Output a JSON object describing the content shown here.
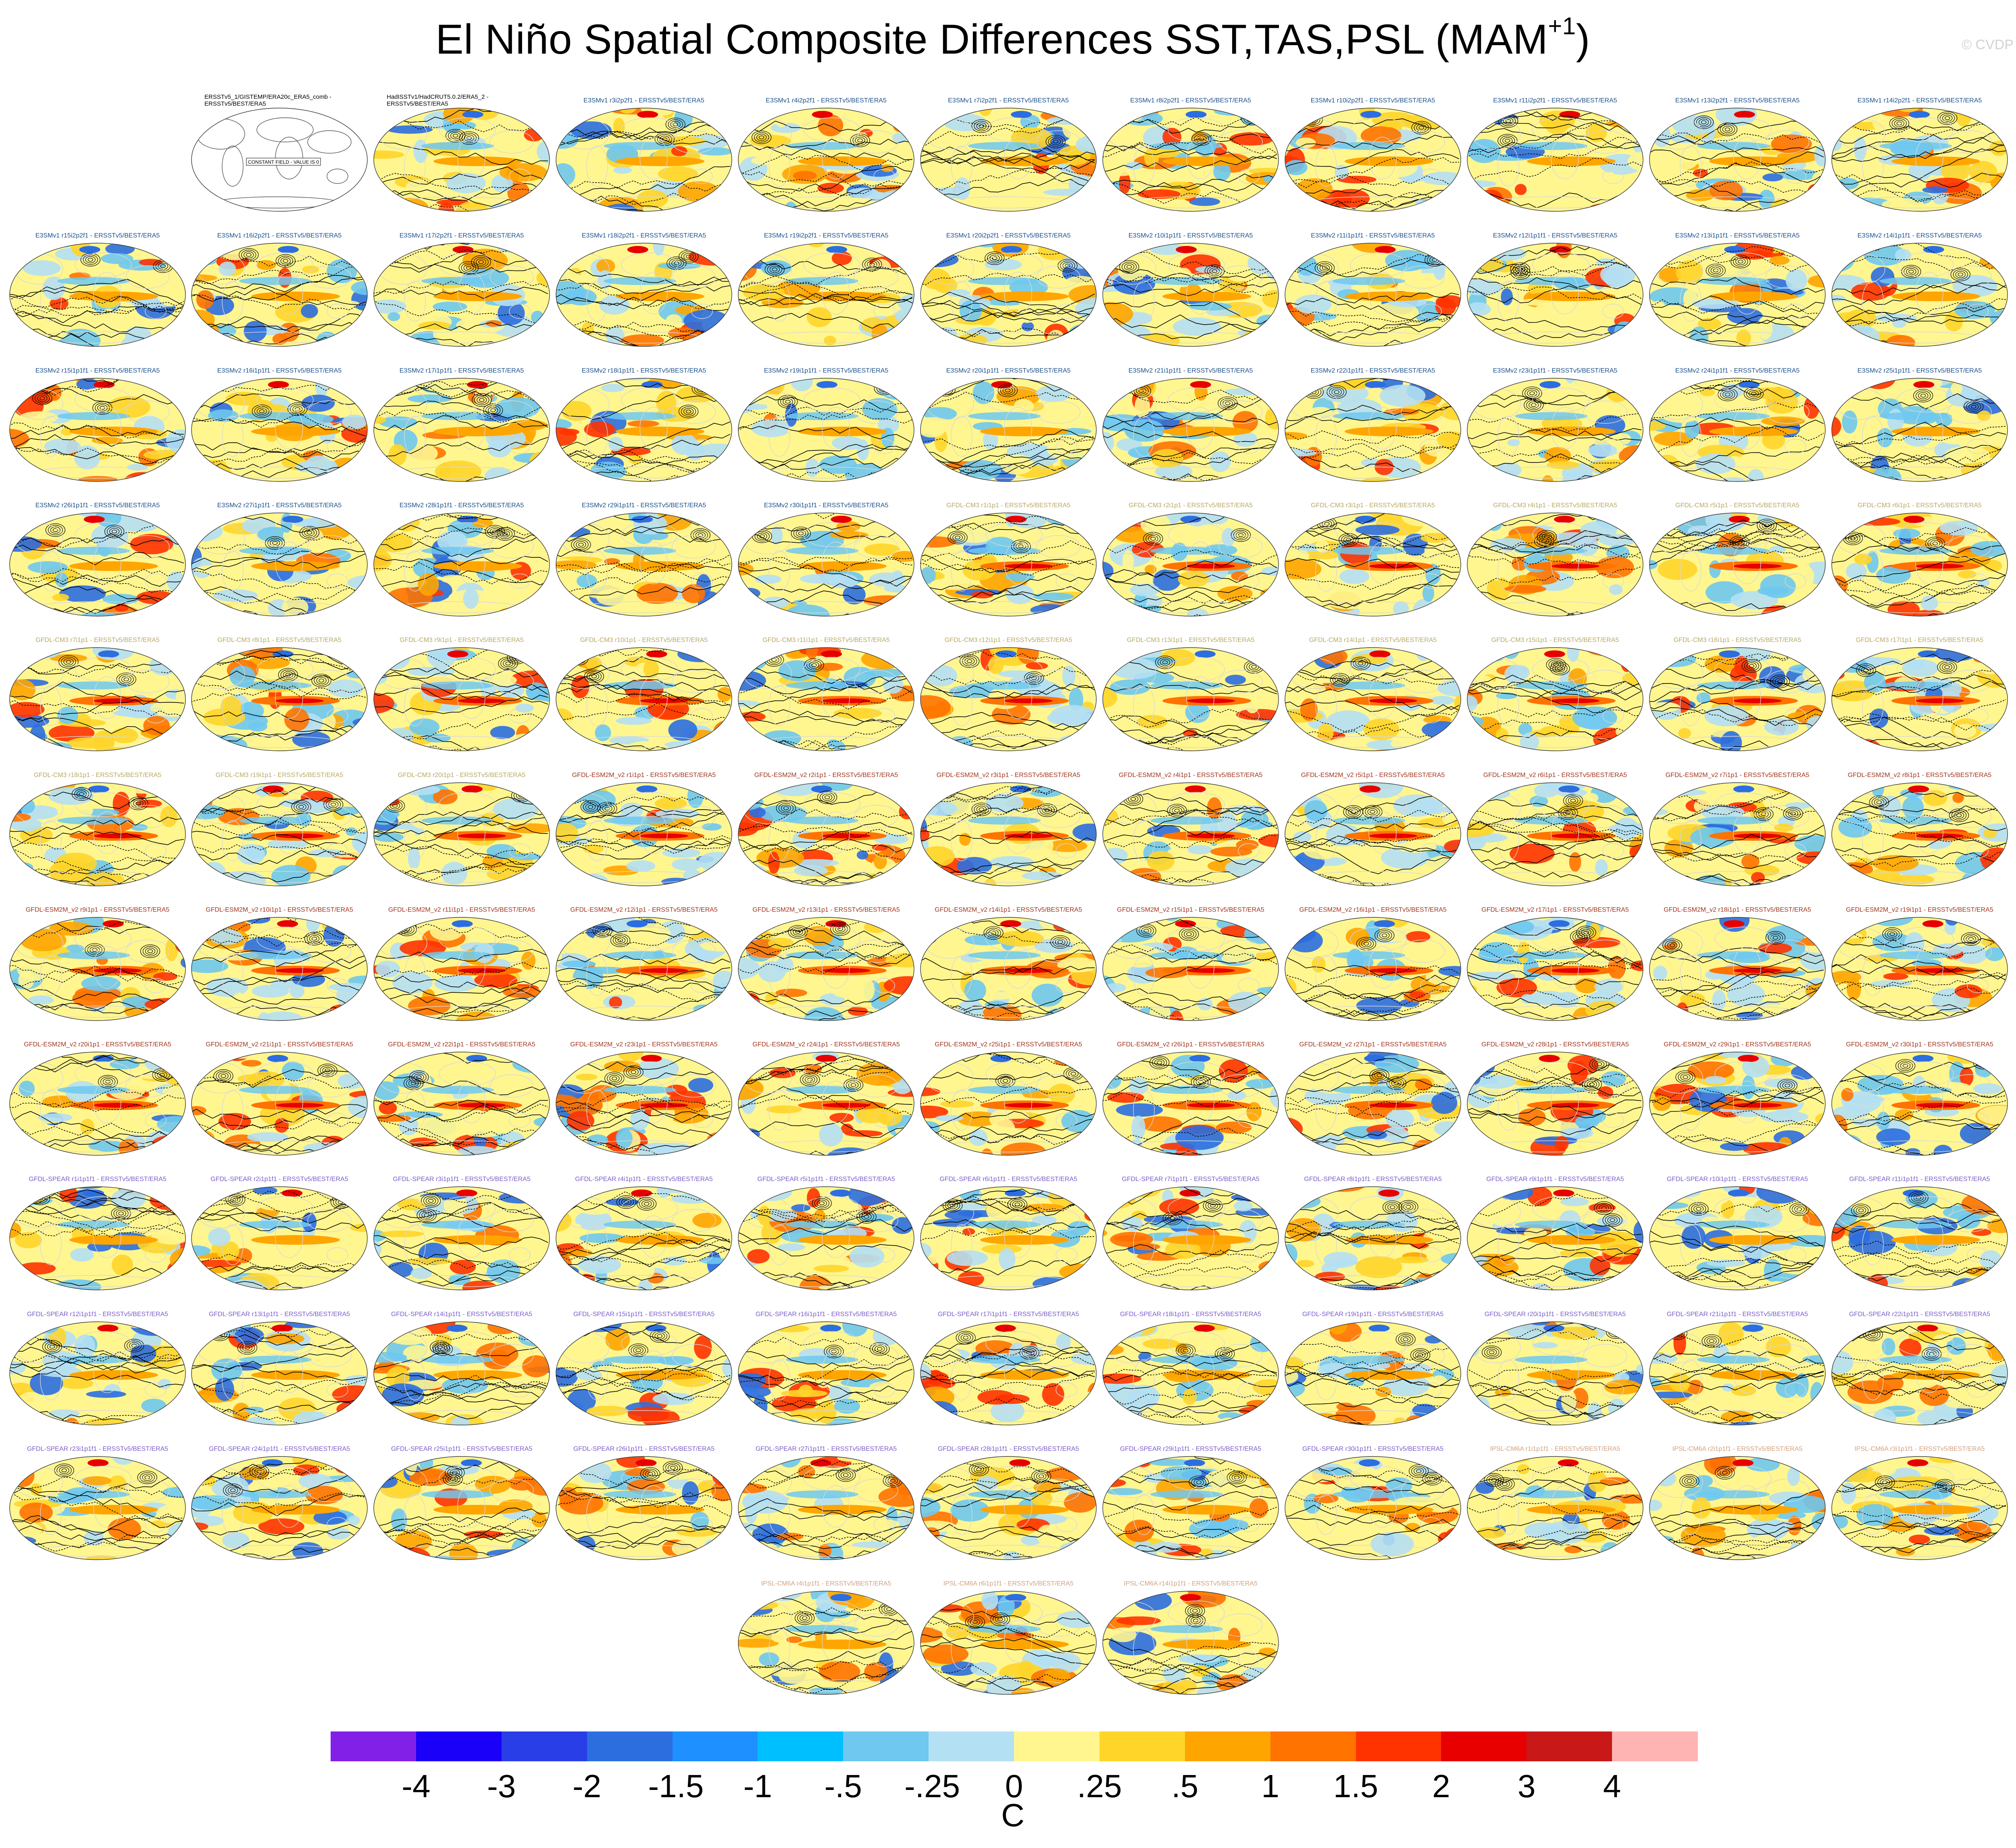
{
  "title": "El Niño Spatial Composite Differences SST,TAS,PSL (MAM",
  "title_superscript": "+1",
  "title_suffix": ")",
  "copyright": "© CVDP",
  "colors": {
    "E3SM": "#1a4f8a",
    "GFDL-CM3": "#b8a860",
    "GFDL-ESM2M": "#a0341c",
    "GFDL-SPEAR": "#7a5cc8",
    "IPSL-CM6A": "#d0a080",
    "obs": "#000000"
  },
  "panels": [
    {
      "label": "ERSSTv5_1/GISTEMP/ERA20c_ERA5_comb - ERSSTv5/BEST/ERA5",
      "group": "obs",
      "note": "CONSTANT FIELD - VALUE IS 0"
    },
    {
      "label": "HadISSTv1/HadCRUT5.0.2/ERA5_2 - ERSSTv5/BEST/ERA5",
      "group": "obs"
    },
    {
      "label": "E3SMv1 r3i2p2f1 - ERSSTv5/BEST/ERA5",
      "group": "E3SM"
    },
    {
      "label": "E3SMv1 r4i2p2f1 - ERSSTv5/BEST/ERA5",
      "group": "E3SM"
    },
    {
      "label": "E3SMv1 r7i2p2f1 - ERSSTv5/BEST/ERA5",
      "group": "E3SM"
    },
    {
      "label": "E3SMv1 r8i2p2f1 - ERSSTv5/BEST/ERA5",
      "group": "E3SM"
    },
    {
      "label": "E3SMv1 r10i2p2f1 - ERSSTv5/BEST/ERA5",
      "group": "E3SM"
    },
    {
      "label": "E3SMv1 r11i2p2f1 - ERSSTv5/BEST/ERA5",
      "group": "E3SM"
    },
    {
      "label": "E3SMv1 r13i2p2f1 - ERSSTv5/BEST/ERA5",
      "group": "E3SM"
    },
    {
      "label": "E3SMv1 r14i2p2f1 - ERSSTv5/BEST/ERA5",
      "group": "E3SM"
    },
    {
      "label": "E3SMv1 r15i2p2f1 - ERSSTv5/BEST/ERA5",
      "group": "E3SM"
    },
    {
      "label": "E3SMv1 r16i2p2f1 - ERSSTv5/BEST/ERA5",
      "group": "E3SM"
    },
    {
      "label": "E3SMv1 r17i2p2f1 - ERSSTv5/BEST/ERA5",
      "group": "E3SM"
    },
    {
      "label": "E3SMv1 r18i2p2f1 - ERSSTv5/BEST/ERA5",
      "group": "E3SM"
    },
    {
      "label": "E3SMv1 r19i2p2f1 - ERSSTv5/BEST/ERA5",
      "group": "E3SM"
    },
    {
      "label": "E3SMv1 r20i2p2f1 - ERSSTv5/BEST/ERA5",
      "group": "E3SM"
    },
    {
      "label": "E3SMv2 r10i1p1f1 - ERSSTv5/BEST/ERA5",
      "group": "E3SM"
    },
    {
      "label": "E3SMv2 r11i1p1f1 - ERSSTv5/BEST/ERA5",
      "group": "E3SM"
    },
    {
      "label": "E3SMv2 r12i1p1f1 - ERSSTv5/BEST/ERA5",
      "group": "E3SM"
    },
    {
      "label": "E3SMv2 r13i1p1f1 - ERSSTv5/BEST/ERA5",
      "group": "E3SM"
    },
    {
      "label": "E3SMv2 r14i1p1f1 - ERSSTv5/BEST/ERA5",
      "group": "E3SM"
    },
    {
      "label": "E3SMv2 r15i1p1f1 - ERSSTv5/BEST/ERA5",
      "group": "E3SM"
    },
    {
      "label": "E3SMv2 r16i1p1f1 - ERSSTv5/BEST/ERA5",
      "group": "E3SM"
    },
    {
      "label": "E3SMv2 r17i1p1f1 - ERSSTv5/BEST/ERA5",
      "group": "E3SM"
    },
    {
      "label": "E3SMv2 r18i1p1f1 - ERSSTv5/BEST/ERA5",
      "group": "E3SM"
    },
    {
      "label": "E3SMv2 r19i1p1f1 - ERSSTv5/BEST/ERA5",
      "group": "E3SM"
    },
    {
      "label": "E3SMv2 r20i1p1f1 - ERSSTv5/BEST/ERA5",
      "group": "E3SM"
    },
    {
      "label": "E3SMv2 r21i1p1f1 - ERSSTv5/BEST/ERA5",
      "group": "E3SM"
    },
    {
      "label": "E3SMv2 r22i1p1f1 - ERSSTv5/BEST/ERA5",
      "group": "E3SM"
    },
    {
      "label": "E3SMv2 r23i1p1f1 - ERSSTv5/BEST/ERA5",
      "group": "E3SM"
    },
    {
      "label": "E3SMv2 r24i1p1f1 - ERSSTv5/BEST/ERA5",
      "group": "E3SM"
    },
    {
      "label": "E3SMv2 r25i1p1f1 - ERSSTv5/BEST/ERA5",
      "group": "E3SM"
    },
    {
      "label": "E3SMv2 r26i1p1f1 - ERSSTv5/BEST/ERA5",
      "group": "E3SM"
    },
    {
      "label": "E3SMv2 r27i1p1f1 - ERSSTv5/BEST/ERA5",
      "group": "E3SM"
    },
    {
      "label": "E3SMv2 r28i1p1f1 - ERSSTv5/BEST/ERA5",
      "group": "E3SM"
    },
    {
      "label": "E3SMv2 r29i1p1f1 - ERSSTv5/BEST/ERA5",
      "group": "E3SM"
    },
    {
      "label": "E3SMv2 r30i1p1f1 - ERSSTv5/BEST/ERA5",
      "group": "E3SM"
    },
    {
      "label": "GFDL-CM3 r1i1p1 - ERSSTv5/BEST/ERA5",
      "group": "GFDL-CM3"
    },
    {
      "label": "GFDL-CM3 r2i1p1 - ERSSTv5/BEST/ERA5",
      "group": "GFDL-CM3"
    },
    {
      "label": "GFDL-CM3 r3i1p1 - ERSSTv5/BEST/ERA5",
      "group": "GFDL-CM3"
    },
    {
      "label": "GFDL-CM3 r4i1p1 - ERSSTv5/BEST/ERA5",
      "group": "GFDL-CM3"
    },
    {
      "label": "GFDL-CM3 r5i1p1 - ERSSTv5/BEST/ERA5",
      "group": "GFDL-CM3"
    },
    {
      "label": "GFDL-CM3 r6i1p1 - ERSSTv5/BEST/ERA5",
      "group": "GFDL-CM3"
    },
    {
      "label": "GFDL-CM3 r7i1p1 - ERSSTv5/BEST/ERA5",
      "group": "GFDL-CM3"
    },
    {
      "label": "GFDL-CM3 r8i1p1 - ERSSTv5/BEST/ERA5",
      "group": "GFDL-CM3"
    },
    {
      "label": "GFDL-CM3 r9i1p1 - ERSSTv5/BEST/ERA5",
      "group": "GFDL-CM3"
    },
    {
      "label": "GFDL-CM3 r10i1p1 - ERSSTv5/BEST/ERA5",
      "group": "GFDL-CM3"
    },
    {
      "label": "GFDL-CM3 r11i1p1 - ERSSTv5/BEST/ERA5",
      "group": "GFDL-CM3"
    },
    {
      "label": "GFDL-CM3 r12i1p1 - ERSSTv5/BEST/ERA5",
      "group": "GFDL-CM3"
    },
    {
      "label": "GFDL-CM3 r13i1p1 - ERSSTv5/BEST/ERA5",
      "group": "GFDL-CM3"
    },
    {
      "label": "GFDL-CM3 r14i1p1 - ERSSTv5/BEST/ERA5",
      "group": "GFDL-CM3"
    },
    {
      "label": "GFDL-CM3 r15i1p1 - ERSSTv5/BEST/ERA5",
      "group": "GFDL-CM3"
    },
    {
      "label": "GFDL-CM3 r16i1p1 - ERSSTv5/BEST/ERA5",
      "group": "GFDL-CM3"
    },
    {
      "label": "GFDL-CM3 r17i1p1 - ERSSTv5/BEST/ERA5",
      "group": "GFDL-CM3"
    },
    {
      "label": "GFDL-CM3 r18i1p1 - ERSSTv5/BEST/ERA5",
      "group": "GFDL-CM3"
    },
    {
      "label": "GFDL-CM3 r19i1p1 - ERSSTv5/BEST/ERA5",
      "group": "GFDL-CM3"
    },
    {
      "label": "GFDL-CM3 r20i1p1 - ERSSTv5/BEST/ERA5",
      "group": "GFDL-CM3"
    },
    {
      "label": "GFDL-ESM2M_v2 r1i1p1 - ERSSTv5/BEST/ERA5",
      "group": "GFDL-ESM2M"
    },
    {
      "label": "GFDL-ESM2M_v2 r2i1p1 - ERSSTv5/BEST/ERA5",
      "group": "GFDL-ESM2M"
    },
    {
      "label": "GFDL-ESM2M_v2 r3i1p1 - ERSSTv5/BEST/ERA5",
      "group": "GFDL-ESM2M"
    },
    {
      "label": "GFDL-ESM2M_v2 r4i1p1 - ERSSTv5/BEST/ERA5",
      "group": "GFDL-ESM2M"
    },
    {
      "label": "GFDL-ESM2M_v2 r5i1p1 - ERSSTv5/BEST/ERA5",
      "group": "GFDL-ESM2M"
    },
    {
      "label": "GFDL-ESM2M_v2 r6i1p1 - ERSSTv5/BEST/ERA5",
      "group": "GFDL-ESM2M"
    },
    {
      "label": "GFDL-ESM2M_v2 r7i1p1 - ERSSTv5/BEST/ERA5",
      "group": "GFDL-ESM2M"
    },
    {
      "label": "GFDL-ESM2M_v2 r8i1p1 - ERSSTv5/BEST/ERA5",
      "group": "GFDL-ESM2M"
    },
    {
      "label": "GFDL-ESM2M_v2 r9i1p1 - ERSSTv5/BEST/ERA5",
      "group": "GFDL-ESM2M"
    },
    {
      "label": "GFDL-ESM2M_v2 r10i1p1 - ERSSTv5/BEST/ERA5",
      "group": "GFDL-ESM2M"
    },
    {
      "label": "GFDL-ESM2M_v2 r11i1p1 - ERSSTv5/BEST/ERA5",
      "group": "GFDL-ESM2M"
    },
    {
      "label": "GFDL-ESM2M_v2 r12i1p1 - ERSSTv5/BEST/ERA5",
      "group": "GFDL-ESM2M"
    },
    {
      "label": "GFDL-ESM2M_v2 r13i1p1 - ERSSTv5/BEST/ERA5",
      "group": "GFDL-ESM2M"
    },
    {
      "label": "GFDL-ESM2M_v2 r14i1p1 - ERSSTv5/BEST/ERA5",
      "group": "GFDL-ESM2M"
    },
    {
      "label": "GFDL-ESM2M_v2 r15i1p1 - ERSSTv5/BEST/ERA5",
      "group": "GFDL-ESM2M"
    },
    {
      "label": "GFDL-ESM2M_v2 r16i1p1 - ERSSTv5/BEST/ERA5",
      "group": "GFDL-ESM2M"
    },
    {
      "label": "GFDL-ESM2M_v2 r17i1p1 - ERSSTv5/BEST/ERA5",
      "group": "GFDL-ESM2M"
    },
    {
      "label": "GFDL-ESM2M_v2 r18i1p1 - ERSSTv5/BEST/ERA5",
      "group": "GFDL-ESM2M"
    },
    {
      "label": "GFDL-ESM2M_v2 r19i1p1 - ERSSTv5/BEST/ERA5",
      "group": "GFDL-ESM2M"
    },
    {
      "label": "GFDL-ESM2M_v2 r20i1p1 - ERSSTv5/BEST/ERA5",
      "group": "GFDL-ESM2M"
    },
    {
      "label": "GFDL-ESM2M_v2 r21i1p1 - ERSSTv5/BEST/ERA5",
      "group": "GFDL-ESM2M"
    },
    {
      "label": "GFDL-ESM2M_v2 r22i1p1 - ERSSTv5/BEST/ERA5",
      "group": "GFDL-ESM2M"
    },
    {
      "label": "GFDL-ESM2M_v2 r23i1p1 - ERSSTv5/BEST/ERA5",
      "group": "GFDL-ESM2M"
    },
    {
      "label": "GFDL-ESM2M_v2 r24i1p1 - ERSSTv5/BEST/ERA5",
      "group": "GFDL-ESM2M"
    },
    {
      "label": "GFDL-ESM2M_v2 r25i1p1 - ERSSTv5/BEST/ERA5",
      "group": "GFDL-ESM2M"
    },
    {
      "label": "GFDL-ESM2M_v2 r26i1p1 - ERSSTv5/BEST/ERA5",
      "group": "GFDL-ESM2M"
    },
    {
      "label": "GFDL-ESM2M_v2 r27i1p1 - ERSSTv5/BEST/ERA5",
      "group": "GFDL-ESM2M"
    },
    {
      "label": "GFDL-ESM2M_v2 r28i1p1 - ERSSTv5/BEST/ERA5",
      "group": "GFDL-ESM2M"
    },
    {
      "label": "GFDL-ESM2M_v2 r29i1p1 - ERSSTv5/BEST/ERA5",
      "group": "GFDL-ESM2M"
    },
    {
      "label": "GFDL-ESM2M_v2 r30i1p1 - ERSSTv5/BEST/ERA5",
      "group": "GFDL-ESM2M"
    },
    {
      "label": "GFDL-SPEAR r1i1p1f1 - ERSSTv5/BEST/ERA5",
      "group": "GFDL-SPEAR"
    },
    {
      "label": "GFDL-SPEAR r2i1p1f1 - ERSSTv5/BEST/ERA5",
      "group": "GFDL-SPEAR"
    },
    {
      "label": "GFDL-SPEAR r3i1p1f1 - ERSSTv5/BEST/ERA5",
      "group": "GFDL-SPEAR"
    },
    {
      "label": "GFDL-SPEAR r4i1p1f1 - ERSSTv5/BEST/ERA5",
      "group": "GFDL-SPEAR"
    },
    {
      "label": "GFDL-SPEAR r5i1p1f1 - ERSSTv5/BEST/ERA5",
      "group": "GFDL-SPEAR"
    },
    {
      "label": "GFDL-SPEAR r6i1p1f1 - ERSSTv5/BEST/ERA5",
      "group": "GFDL-SPEAR"
    },
    {
      "label": "GFDL-SPEAR r7i1p1f1 - ERSSTv5/BEST/ERA5",
      "group": "GFDL-SPEAR"
    },
    {
      "label": "GFDL-SPEAR r8i1p1f1 - ERSSTv5/BEST/ERA5",
      "group": "GFDL-SPEAR"
    },
    {
      "label": "GFDL-SPEAR r9i1p1f1 - ERSSTv5/BEST/ERA5",
      "group": "GFDL-SPEAR"
    },
    {
      "label": "GFDL-SPEAR r10i1p1f1 - ERSSTv5/BEST/ERA5",
      "group": "GFDL-SPEAR"
    },
    {
      "label": "GFDL-SPEAR r11i1p1f1 - ERSSTv5/BEST/ERA5",
      "group": "GFDL-SPEAR"
    },
    {
      "label": "GFDL-SPEAR r12i1p1f1 - ERSSTv5/BEST/ERA5",
      "group": "GFDL-SPEAR"
    },
    {
      "label": "GFDL-SPEAR r13i1p1f1 - ERSSTv5/BEST/ERA5",
      "group": "GFDL-SPEAR"
    },
    {
      "label": "GFDL-SPEAR r14i1p1f1 - ERSSTv5/BEST/ERA5",
      "group": "GFDL-SPEAR"
    },
    {
      "label": "GFDL-SPEAR r15i1p1f1 - ERSSTv5/BEST/ERA5",
      "group": "GFDL-SPEAR"
    },
    {
      "label": "GFDL-SPEAR r16i1p1f1 - ERSSTv5/BEST/ERA5",
      "group": "GFDL-SPEAR"
    },
    {
      "label": "GFDL-SPEAR r17i1p1f1 - ERSSTv5/BEST/ERA5",
      "group": "GFDL-SPEAR"
    },
    {
      "label": "GFDL-SPEAR r18i1p1f1 - ERSSTv5/BEST/ERA5",
      "group": "GFDL-SPEAR"
    },
    {
      "label": "GFDL-SPEAR r19i1p1f1 - ERSSTv5/BEST/ERA5",
      "group": "GFDL-SPEAR"
    },
    {
      "label": "GFDL-SPEAR r20i1p1f1 - ERSSTv5/BEST/ERA5",
      "group": "GFDL-SPEAR"
    },
    {
      "label": "GFDL-SPEAR r21i1p1f1 - ERSSTv5/BEST/ERA5",
      "group": "GFDL-SPEAR"
    },
    {
      "label": "GFDL-SPEAR r22i1p1f1 - ERSSTv5/BEST/ERA5",
      "group": "GFDL-SPEAR"
    },
    {
      "label": "GFDL-SPEAR r23i1p1f1 - ERSSTv5/BEST/ERA5",
      "group": "GFDL-SPEAR"
    },
    {
      "label": "GFDL-SPEAR r24i1p1f1 - ERSSTv5/BEST/ERA5",
      "group": "GFDL-SPEAR"
    },
    {
      "label": "GFDL-SPEAR r25i1p1f1 - ERSSTv5/BEST/ERA5",
      "group": "GFDL-SPEAR"
    },
    {
      "label": "GFDL-SPEAR r26i1p1f1 - ERSSTv5/BEST/ERA5",
      "group": "GFDL-SPEAR"
    },
    {
      "label": "GFDL-SPEAR r27i1p1f1 - ERSSTv5/BEST/ERA5",
      "group": "GFDL-SPEAR"
    },
    {
      "label": "GFDL-SPEAR r28i1p1f1 - ERSSTv5/BEST/ERA5",
      "group": "GFDL-SPEAR"
    },
    {
      "label": "GFDL-SPEAR r29i1p1f1 - ERSSTv5/BEST/ERA5",
      "group": "GFDL-SPEAR"
    },
    {
      "label": "GFDL-SPEAR r30i1p1f1 - ERSSTv5/BEST/ERA5",
      "group": "GFDL-SPEAR"
    },
    {
      "label": "IPSL-CM6A r1i1p1f1 - ERSSTv5/BEST/ERA5",
      "group": "IPSL-CM6A"
    },
    {
      "label": "IPSL-CM6A r2i1p1f1 - ERSSTv5/BEST/ERA5",
      "group": "IPSL-CM6A"
    },
    {
      "label": "IPSL-CM6A r3i1p1f1 - ERSSTv5/BEST/ERA5",
      "group": "IPSL-CM6A"
    },
    {
      "label": "IPSL-CM6A r4i1p1f1 - ERSSTv5/BEST/ERA5",
      "group": "IPSL-CM6A"
    },
    {
      "label": "IPSL-CM6A r6i1p1f1 - ERSSTv5/BEST/ERA5",
      "group": "IPSL-CM6A"
    },
    {
      "label": "IPSL-CM6A r14i1p1f1 - ERSSTv5/BEST/ERA5",
      "group": "IPSL-CM6A"
    }
  ],
  "colorbar": {
    "unit": "C",
    "colors": [
      "#8220e8",
      "#1a00f8",
      "#2a3ee8",
      "#2c6ee0",
      "#1e90ff",
      "#00bfff",
      "#6ec8f0",
      "#b4e0f4",
      "#fff690",
      "#ffd52a",
      "#ffa500",
      "#ff7300",
      "#ff3300",
      "#e80000",
      "#c81818",
      "#ffb4b4"
    ],
    "ticks": [
      "-4",
      "-3",
      "-2",
      "-1.5",
      "-1",
      "-.5",
      "-.25",
      "0",
      ".25",
      ".5",
      "1",
      "1.5",
      "2",
      "3",
      "4"
    ]
  }
}
